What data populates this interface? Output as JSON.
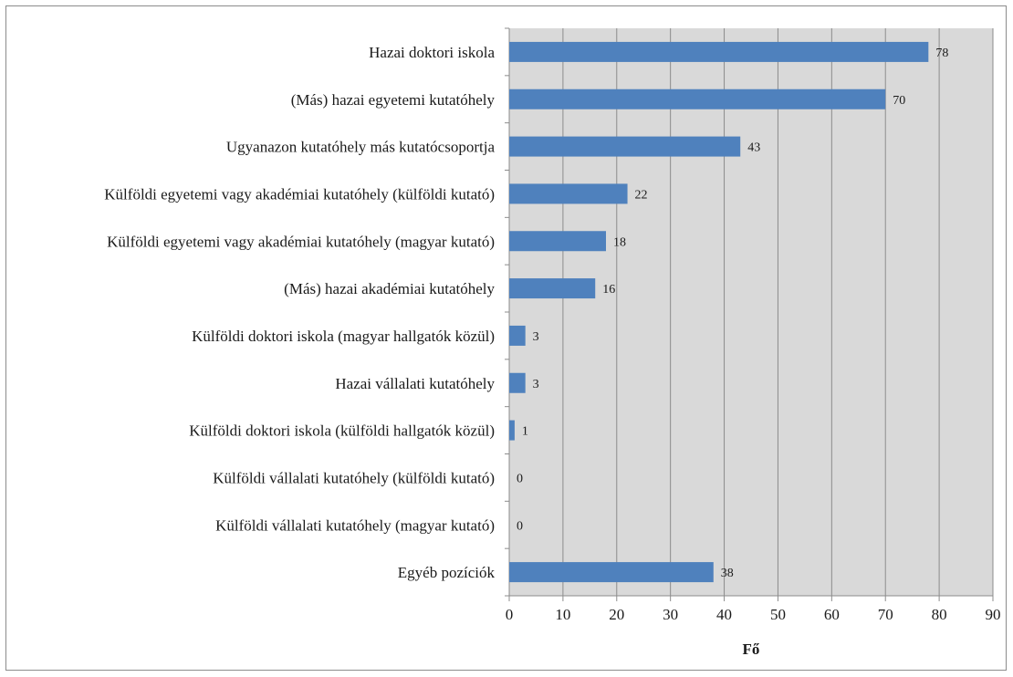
{
  "chart_data": {
    "type": "bar",
    "orientation": "horizontal",
    "categories": [
      "Hazai doktori iskola",
      "(Más) hazai egyetemi kutatóhely",
      "Ugyanazon kutatóhely más kutatócsoportja",
      "Külföldi egyetemi vagy akadémiai kutatóhely (külföldi kutató)",
      "Külföldi egyetemi vagy akadémiai kutatóhely (magyar kutató)",
      "(Más) hazai akadémiai kutatóhely",
      "Külföldi doktori iskola (magyar hallgatók közül)",
      "Hazai vállalati kutatóhely",
      "Külföldi doktori iskola (külföldi hallgatók közül)",
      "Külföldi vállalati kutatóhely (külföldi kutató)",
      "Külföldi vállalati kutatóhely (magyar kutató)",
      "Egyéb pozíciók"
    ],
    "values": [
      78,
      70,
      43,
      22,
      18,
      16,
      3,
      3,
      1,
      0,
      0,
      38
    ],
    "data_labels": [
      "78",
      "70",
      "43",
      "22",
      "18",
      "16",
      "3",
      "3",
      "1",
      "0",
      "0",
      "38"
    ],
    "xlabel": "Fő",
    "xlim": [
      0,
      90
    ],
    "xticks": [
      0,
      10,
      20,
      30,
      40,
      50,
      60,
      70,
      80,
      90
    ],
    "xtick_labels": [
      "0",
      "10",
      "20",
      "30",
      "40",
      "50",
      "60",
      "70",
      "80",
      "90"
    ],
    "grid": true,
    "legend": "none",
    "colors": {
      "bar": "#4f81bd",
      "plot_background": "#d9d9d9",
      "gridline": "#8c8c8c",
      "axis": "#8c8c8c"
    }
  }
}
